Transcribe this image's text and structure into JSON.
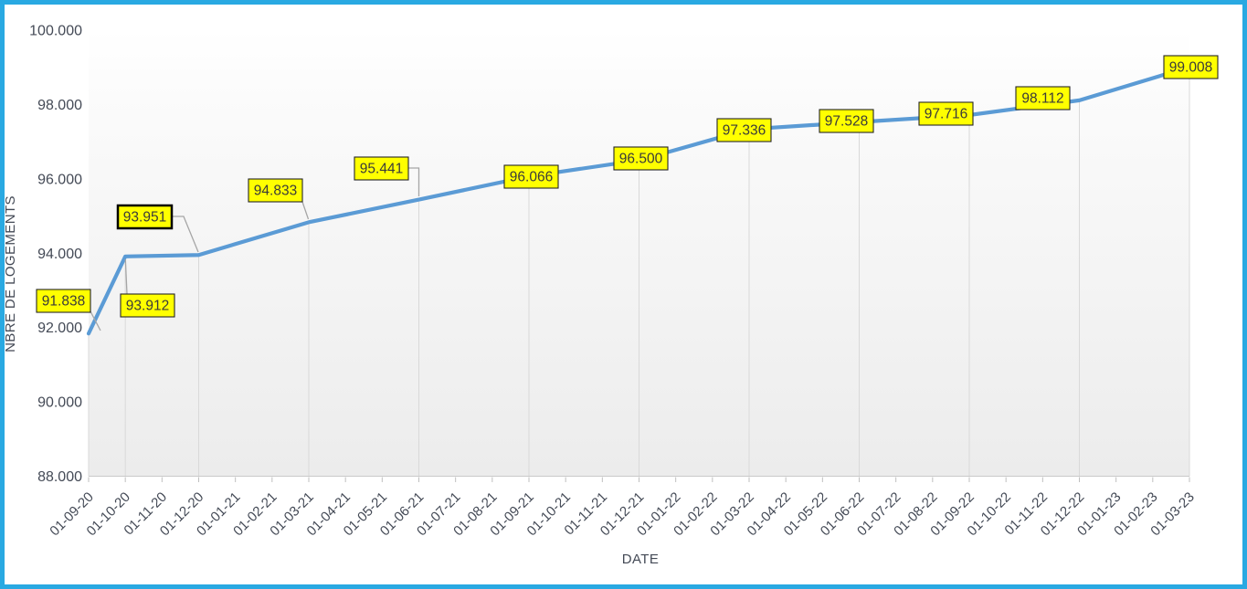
{
  "window": {
    "border_color": "#29A9E2",
    "background": "#FFFFFF"
  },
  "chart_data": {
    "type": "line",
    "title": "",
    "xlabel": "DATE",
    "ylabel": "NBRE DE LOGEMENTS",
    "ylim": [
      88000,
      100000
    ],
    "grid": "vertical drop lines at data points only, no horizontal gridlines",
    "legend_position": "none",
    "y_ticks": [
      {
        "value": 88000,
        "label": "88.000"
      },
      {
        "value": 90000,
        "label": "90.000"
      },
      {
        "value": 92000,
        "label": "92.000"
      },
      {
        "value": 94000,
        "label": "94.000"
      },
      {
        "value": 96000,
        "label": "96.000"
      },
      {
        "value": 98000,
        "label": "98.000"
      },
      {
        "value": 100000,
        "label": "100.000"
      }
    ],
    "x_tick_labels": [
      "01-09-20",
      "01-10-20",
      "01-11-20",
      "01-12-20",
      "01-01-21",
      "01-02-21",
      "01-03-21",
      "01-04-21",
      "01-05-21",
      "01-06-21",
      "01-07-21",
      "01-08-21",
      "01-09-21",
      "01-10-21",
      "01-11-21",
      "01-12-21",
      "01-01-22",
      "01-02-22",
      "01-03-22",
      "01-04-22",
      "01-05-22",
      "01-06-22",
      "01-07-22",
      "01-08-22",
      "01-09-22",
      "01-10-22",
      "01-11-22",
      "01-12-22",
      "01-01-23",
      "01-02-23",
      "01-03-23"
    ],
    "series": [
      {
        "name": "NBRE DE LOGEMENTS",
        "color": "#5B9BD5",
        "points": [
          {
            "x_label": "01-09-20",
            "x_index": 0,
            "value": 91838,
            "label": "91.838",
            "label_box": [
              40,
              317
            ],
            "label_bold": false,
            "leader": [
              [
                99,
                341
              ],
              [
                110,
                362
              ]
            ]
          },
          {
            "x_label": "01-10-20",
            "x_index": 1,
            "value": 93912,
            "label": "93.912",
            "label_box": [
              132,
              322
            ],
            "label_bold": false,
            "leader": [
              [
                139,
                322
              ],
              [
                137.3,
                284
              ]
            ]
          },
          {
            "x_label": "01-12-20",
            "x_index": 3,
            "value": 93951,
            "label": "93.951",
            "label_box": [
              129,
              225
            ],
            "label_bold": true,
            "leader": [
              [
                188,
                237
              ],
              [
                201,
                237
              ],
              [
                217,
                276
              ]
            ]
          },
          {
            "x_label": "01-03-21",
            "x_index": 6,
            "value": 94833,
            "label": "94.833",
            "label_box": [
              272,
              196
            ],
            "label_bold": false,
            "leader": [
              [
                331,
                221
              ],
              [
                337.5,
                240
              ]
            ]
          },
          {
            "x_label": "01-06-21",
            "x_index": 9,
            "value": 95441,
            "label": "95.441",
            "label_box": [
              388,
              172
            ],
            "label_bold": false,
            "leader": [
              [
                447,
                184
              ],
              [
                458.5,
                184
              ],
              [
                458.5,
                215
              ]
            ]
          },
          {
            "x_label": "01-09-21",
            "x_index": 12,
            "value": 96066,
            "label": "96.066",
            "label_box": [
              552,
              181
            ],
            "label_bold": false,
            "leader": null
          },
          {
            "x_label": "01-12-21",
            "x_index": 15,
            "value": 96500,
            "label": "96.500",
            "label_box": [
              672,
              161
            ],
            "label_bold": false,
            "leader": null
          },
          {
            "x_label": "01-03-22",
            "x_index": 18,
            "value": 97336,
            "label": "97.336",
            "label_box": [
              785,
              130
            ],
            "label_bold": false,
            "leader": null
          },
          {
            "x_label": "01-06-22",
            "x_index": 21,
            "value": 97528,
            "label": "97.528",
            "label_box": [
              897,
              120
            ],
            "label_bold": false,
            "leader": null
          },
          {
            "x_label": "01-09-22",
            "x_index": 24,
            "value": 97716,
            "label": "97.716",
            "label_box": [
              1006,
              112
            ],
            "label_bold": false,
            "leader": null
          },
          {
            "x_label": "01-12-22",
            "x_index": 27,
            "value": 98112,
            "label": "98.112",
            "label_box": [
              1112,
              95
            ],
            "label_bold": false,
            "leader": null
          },
          {
            "x_label": "01-03-23",
            "x_index": 30,
            "value": 99008,
            "label": "99.008",
            "label_box": [
              1274,
              61
            ],
            "label_bold": false,
            "leader": null
          }
        ]
      }
    ],
    "label_style": {
      "fill": "#FFFF00",
      "border": "#262626",
      "bold_border": "#000000",
      "text_color": "#3A3A3A"
    },
    "axis_style": {
      "tick_text_color": "#444A56",
      "axis_line_color": "#C9C9C9",
      "tick_mark_color": "#BFBFBF",
      "drop_line_color": "#D9D9D9",
      "leader_color": "#A6A6A6",
      "plot_bg_top": "#FFFFFF",
      "plot_bg_bottom": "#ECECEC"
    }
  }
}
